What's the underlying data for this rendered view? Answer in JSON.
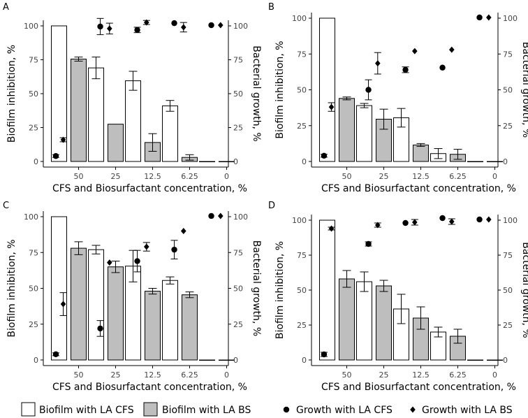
{
  "chart_data": {
    "type": "bar",
    "shared": {
      "categories": [
        "50",
        "25",
        "12.5",
        "6.25",
        "0"
      ],
      "xlabel": "CFS and Biosurfactant concentration, %",
      "ylabel_left": "Biofilm inhibition, %",
      "ylabel_right": "Bacterial growth, %",
      "ylim_left": [
        0,
        100
      ],
      "ylim_right": [
        0,
        100
      ],
      "yticks": [
        0,
        25,
        50,
        75,
        100
      ],
      "yticks_right": [
        0,
        25,
        50,
        75,
        100
      ]
    },
    "legend": {
      "items": [
        {
          "label": "Biofilm with LA CFS",
          "shape": "white-bar"
        },
        {
          "label": "Biofilm with LA BS",
          "shape": "grey-bar"
        },
        {
          "label": "Growth with LA CFS",
          "shape": "circle"
        },
        {
          "label": "Growth with LA BS",
          "shape": "diamond"
        }
      ],
      "position": "bottom"
    },
    "colors": {
      "cfs_bar": "#ffffff",
      "bs_bar": "#bebebe",
      "stroke": "#000000",
      "background": "#ffffff"
    },
    "panels": [
      {
        "label": "A",
        "series": [
          {
            "name": "Biofilm with LA CFS",
            "kind": "bar",
            "values": [
              100,
              69,
              59.5,
              41,
              0
            ],
            "errors": [
              0,
              8,
              7,
              4,
              0
            ],
            "x_offset": [
              -0.12,
              -0.12,
              -0.12,
              -0.12,
              -0.12
            ]
          },
          {
            "name": "Biofilm with LA BS",
            "kind": "bar",
            "values": [
              75.5,
              27.5,
              14,
              3,
              0
            ],
            "errors": [
              1.5,
              0,
              6.5,
              2,
              0
            ],
            "x_offset": [
              0.12,
              0.12,
              0.12,
              0.12,
              0.12
            ]
          },
          {
            "name": "Growth with LA CFS",
            "kind": "point",
            "values": [
              4,
              99.5,
              97,
              102,
              100.5
            ],
            "errors": [
              1,
              6,
              2,
              0,
              0
            ],
            "x_offset": [
              -0.7,
              -0.3,
              -0.3,
              -0.3,
              -0.3
            ]
          },
          {
            "name": "Growth with LA BS",
            "kind": "point",
            "values": [
              16,
              98,
              102.5,
              99,
              100.5
            ],
            "errors": [
              1.5,
              4,
              1.5,
              3.5,
              0
            ],
            "x_offset": [
              -0.3,
              0.2,
              0.2,
              0.2,
              0.2
            ]
          }
        ]
      },
      {
        "label": "B",
        "series": [
          {
            "name": "Biofilm with LA CFS",
            "kind": "bar",
            "values": [
              100,
              39,
              30.5,
              5.5,
              0
            ],
            "errors": [
              0,
              1.5,
              6.5,
              3.5,
              0
            ],
            "x_offset": [
              -0.12,
              -0.12,
              -0.12,
              -0.12,
              -0.12
            ]
          },
          {
            "name": "Biofilm with LA BS",
            "kind": "bar",
            "values": [
              44,
              29.5,
              11.5,
              5,
              0
            ],
            "errors": [
              1,
              7,
              1,
              3.5,
              0
            ],
            "x_offset": [
              0.12,
              0.12,
              0.12,
              0.12,
              0.12
            ]
          },
          {
            "name": "Growth with LA CFS",
            "kind": "point",
            "values": [
              4,
              50,
              64,
              65.5,
              100.5
            ],
            "errors": [
              1,
              7,
              2,
              0,
              0
            ],
            "x_offset": [
              -0.7,
              -0.3,
              -0.3,
              -0.3,
              -0.3
            ]
          },
          {
            "name": "Growth with LA BS",
            "kind": "point",
            "values": [
              38,
              68.5,
              77,
              78,
              100.5
            ],
            "errors": [
              3,
              7.5,
              0,
              0,
              0
            ],
            "x_offset": [
              -0.3,
              0.2,
              0.2,
              0.2,
              0.2
            ]
          }
        ]
      },
      {
        "label": "C",
        "series": [
          {
            "name": "Biofilm with LA CFS",
            "kind": "bar",
            "values": [
              100,
              77,
              65.5,
              55.5,
              0
            ],
            "errors": [
              0,
              3,
              11,
              2.5,
              0
            ],
            "x_offset": [
              -0.12,
              -0.12,
              -0.12,
              -0.12,
              -0.12
            ]
          },
          {
            "name": "Biofilm with LA BS",
            "kind": "bar",
            "values": [
              78,
              65,
              48,
              45.5,
              0
            ],
            "errors": [
              4.5,
              4,
              2,
              2,
              0
            ],
            "x_offset": [
              0.12,
              0.12,
              0.12,
              0.12,
              0.12
            ]
          },
          {
            "name": "Growth with LA CFS",
            "kind": "point",
            "values": [
              4,
              22,
              69,
              77,
              100.5
            ],
            "errors": [
              1,
              5.5,
              7.5,
              6.5,
              0
            ],
            "x_offset": [
              -0.7,
              -0.3,
              -0.3,
              -0.3,
              -0.3
            ]
          },
          {
            "name": "Growth with LA BS",
            "kind": "point",
            "values": [
              39,
              68,
              79,
              90,
              100.5
            ],
            "errors": [
              8,
              0,
              3,
              0,
              0
            ],
            "x_offset": [
              -0.3,
              0.2,
              0.2,
              0.2,
              0.2
            ]
          }
        ]
      },
      {
        "label": "D",
        "series": [
          {
            "name": "Biofilm with LA CFS",
            "kind": "bar",
            "values": [
              100,
              56,
              36.5,
              20,
              0
            ],
            "errors": [
              0,
              7,
              10.5,
              3.5,
              0
            ],
            "x_offset": [
              -0.12,
              -0.12,
              -0.12,
              -0.12,
              -0.12
            ]
          },
          {
            "name": "Biofilm with LA BS",
            "kind": "bar",
            "values": [
              58,
              53,
              30,
              17,
              0
            ],
            "errors": [
              6,
              4,
              8,
              5,
              0
            ],
            "x_offset": [
              0.12,
              0.12,
              0.12,
              0.12,
              0.12
            ]
          },
          {
            "name": "Growth with LA CFS",
            "kind": "point",
            "values": [
              4,
              83,
              98,
              101.5,
              100.5
            ],
            "errors": [
              1.5,
              1.5,
              0,
              0,
              0
            ],
            "x_offset": [
              -0.7,
              -0.3,
              -0.3,
              -0.3,
              -0.3
            ]
          },
          {
            "name": "Growth with LA BS",
            "kind": "point",
            "values": [
              94,
              96.5,
              98.5,
              99,
              100.5
            ],
            "errors": [
              1,
              1.5,
              2,
              2,
              0
            ],
            "x_offset": [
              -0.3,
              0.2,
              0.2,
              0.2,
              0.2
            ]
          }
        ]
      }
    ]
  }
}
